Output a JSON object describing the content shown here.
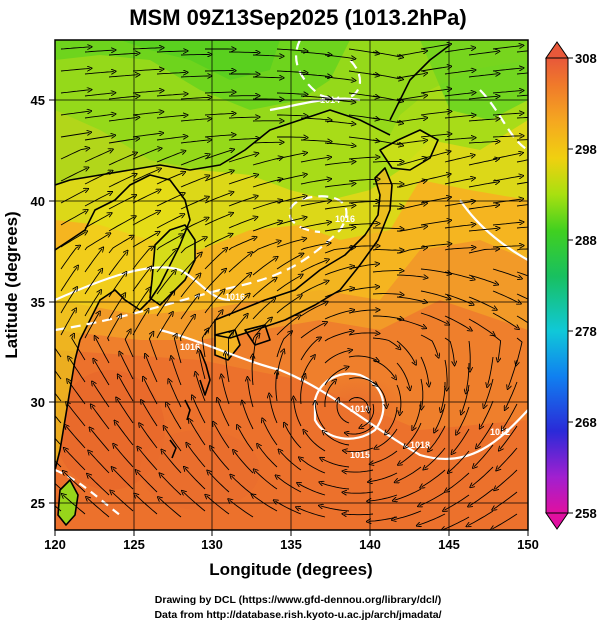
{
  "title": "MSM 09Z13Sep2025 (1013.2hPa)",
  "x_axis": {
    "label": "Longitude (degrees)",
    "min": 120,
    "max": 150,
    "ticks": [
      "120",
      "125",
      "130",
      "135",
      "140",
      "145",
      "150"
    ]
  },
  "y_axis": {
    "label": "Latitude  (degrees)",
    "min": 22.5,
    "max": 48,
    "ticks": [
      "25",
      "30",
      "35",
      "40",
      "45"
    ]
  },
  "colorbar": {
    "min": 258,
    "max": 308,
    "labels": [
      "308",
      "298",
      "288",
      "278",
      "268",
      "258"
    ],
    "colors": [
      "#e0005a",
      "#ff2fa0",
      "#4a1fb0",
      "#1a35d8",
      "#0f8fe8",
      "#10c8c8",
      "#10c060",
      "#2ed12e",
      "#8ee01a",
      "#d8e010",
      "#f0c020",
      "#f29a25",
      "#ef7a2a",
      "#e86030"
    ]
  },
  "contour_labels": [
    "1014",
    "1016",
    "1016",
    "1018",
    "1015",
    "1016",
    "1010",
    "1012"
  ],
  "credits": {
    "line1": "Drawing by DCL (https://www.gfd-dennou.org/library/dcl/)",
    "line2": "Data from http://database.rish.kyoto-u.ac.jp/arch/jmadata/"
  }
}
